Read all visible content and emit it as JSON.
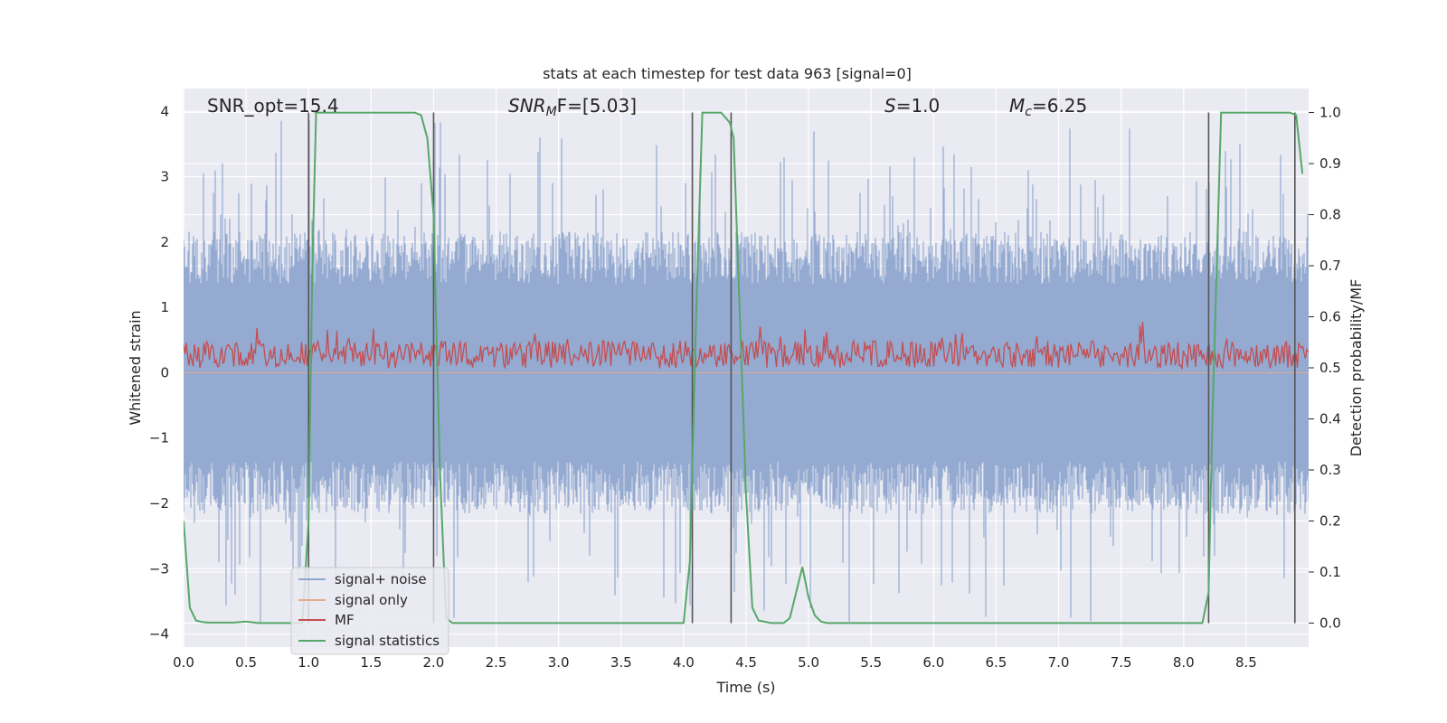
{
  "chart_data": {
    "type": "line",
    "title": "stats at each timestep for test data 963 [signal=0]",
    "xlabel": "Time (s)",
    "ylabel": "Whitened strain",
    "y2label": "Detection probability/MF",
    "xlim": [
      0.0,
      9.0
    ],
    "ylim": [
      -4.2,
      4.35
    ],
    "y2lim": [
      -0.047,
      1.047
    ],
    "x_ticks": [
      "0.0",
      "0.5",
      "1.0",
      "1.5",
      "2.0",
      "2.5",
      "3.0",
      "3.5",
      "4.0",
      "4.5",
      "5.0",
      "5.5",
      "6.0",
      "6.5",
      "7.0",
      "7.5",
      "8.0",
      "8.5"
    ],
    "y_ticks": [
      "4",
      "3",
      "2",
      "1",
      "0",
      "−1",
      "−2",
      "−3",
      "−4"
    ],
    "y2_ticks": [
      "1.0",
      "0.9",
      "0.8",
      "0.7",
      "0.6",
      "0.5",
      "0.4",
      "0.3",
      "0.2",
      "0.1",
      "0.0"
    ],
    "grid": true,
    "legend_position": "lower-left",
    "annotations": {
      "snr_opt": "SNR_opt=15.4",
      "snr_mf_main": "SNR",
      "snr_mf_sub": "M",
      "snr_mf_rest": "F=[5.03]",
      "s_main": "S",
      "s_rest": "=1.0",
      "mc_main": "M",
      "mc_sub": "c",
      "mc_rest": "=6.25"
    },
    "series": [
      {
        "name": "signal+ noise",
        "color": "#8fa6cf",
        "kind": "noise",
        "amplitude_typical": 1.6,
        "amplitude_max": 4.0
      },
      {
        "name": "signal only",
        "color": "#e8a98a",
        "kind": "flat",
        "value": 0.0
      },
      {
        "name": "MF",
        "color": "#c44e52",
        "kind": "mf",
        "center": 0.28,
        "range": [
          0.0,
          1.0
        ]
      },
      {
        "name": "signal statistics",
        "color": "#55a868",
        "axis": "right",
        "x": [
          0.0,
          0.05,
          0.1,
          0.15,
          0.2,
          0.3,
          0.4,
          0.5,
          0.6,
          0.8,
          0.95,
          1.0,
          1.03,
          1.06,
          1.1,
          1.3,
          1.5,
          1.7,
          1.85,
          1.9,
          1.95,
          2.0,
          2.05,
          2.1,
          2.15,
          2.2,
          2.5,
          3.0,
          3.5,
          4.0,
          4.02,
          4.05,
          4.1,
          4.15,
          4.2,
          4.3,
          4.37,
          4.4,
          4.45,
          4.5,
          4.55,
          4.6,
          4.7,
          4.8,
          4.85,
          4.9,
          4.95,
          5.0,
          5.05,
          5.1,
          5.15,
          5.2,
          5.5,
          6.0,
          6.5,
          7.0,
          7.5,
          8.0,
          8.15,
          8.2,
          8.23,
          8.3,
          8.5,
          8.7,
          8.8,
          8.85,
          8.9,
          8.95
        ],
        "y": [
          0.2,
          0.03,
          0.005,
          0.002,
          0.001,
          0.001,
          0.001,
          0.003,
          0.0,
          0.0,
          0.0,
          0.2,
          0.7,
          1.0,
          1.0,
          1.0,
          1.0,
          1.0,
          1.0,
          0.995,
          0.95,
          0.8,
          0.3,
          0.01,
          0.0,
          0.0,
          0.0,
          0.0,
          0.0,
          0.0,
          0.05,
          0.12,
          0.6,
          1.0,
          1.0,
          1.0,
          0.98,
          0.95,
          0.6,
          0.25,
          0.03,
          0.005,
          0.0,
          0.0,
          0.01,
          0.06,
          0.11,
          0.05,
          0.015,
          0.003,
          0.0,
          0.0,
          0.0,
          0.0,
          0.0,
          0.0,
          0.0,
          0.0,
          0.0,
          0.06,
          0.4,
          1.0,
          1.0,
          1.0,
          1.0,
          1.0,
          0.995,
          0.88
        ]
      }
    ],
    "vlines": [
      1.0,
      2.0,
      4.07,
      4.38,
      8.2,
      8.89
    ]
  }
}
